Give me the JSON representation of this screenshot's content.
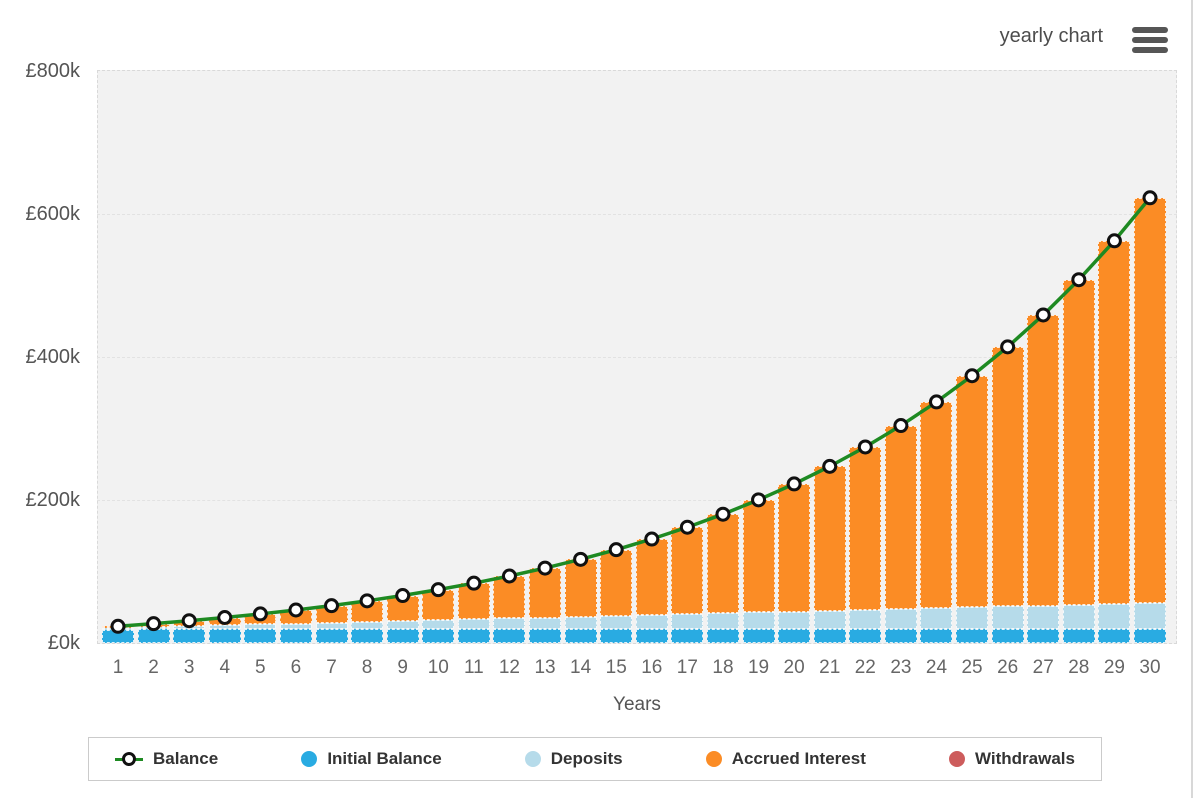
{
  "header": {
    "view_mode_label": "yearly chart",
    "menu_icon": "hamburger-icon"
  },
  "chart_data": {
    "type": "bar",
    "subtype": "stacked-bars-with-line-overlay",
    "title": "",
    "xlabel": "Years",
    "ylabel": "",
    "currency": "GBP",
    "ylim": [
      0,
      800000
    ],
    "grid": "horizontal",
    "legend_position": "bottom",
    "x": [
      1,
      2,
      3,
      4,
      5,
      6,
      7,
      8,
      9,
      10,
      11,
      12,
      13,
      14,
      15,
      16,
      17,
      18,
      19,
      20,
      21,
      22,
      23,
      24,
      25,
      26,
      27,
      28,
      29,
      30
    ],
    "y_ticks": [
      {
        "value": 0,
        "label": "£0k"
      },
      {
        "value": 200000,
        "label": "£200k"
      },
      {
        "value": 400000,
        "label": "£400k"
      },
      {
        "value": 600000,
        "label": "£600k"
      },
      {
        "value": 800000,
        "label": "£800k"
      }
    ],
    "series": [
      {
        "name": "Balance",
        "type": "line",
        "color": "#1e8a22",
        "marker": "white-circle-black-ring",
        "values": [
          23351,
          27052,
          31142,
          35659,
          40650,
          46162,
          52253,
          58980,
          66413,
          74623,
          83693,
          93713,
          104781,
          117009,
          130517,
          145439,
          161924,
          180135,
          200252,
          222477,
          247027,
          274149,
          304110,
          337208,
          373772,
          414164,
          458786,
          508079,
          562534,
          622691
        ]
      },
      {
        "name": "Initial Balance",
        "type": "bar-stack",
        "color": "#29abe2",
        "values": [
          20000,
          20000,
          20000,
          20000,
          20000,
          20000,
          20000,
          20000,
          20000,
          20000,
          20000,
          20000,
          20000,
          20000,
          20000,
          20000,
          20000,
          20000,
          20000,
          20000,
          20000,
          20000,
          20000,
          20000,
          20000,
          20000,
          20000,
          20000,
          20000,
          20000
        ]
      },
      {
        "name": "Deposits",
        "type": "bar-stack",
        "color": "#b6dbea",
        "values": [
          1200,
          2400,
          3600,
          4800,
          6000,
          7200,
          8400,
          9600,
          10800,
          12000,
          13200,
          14400,
          15600,
          16800,
          18000,
          19200,
          20400,
          21600,
          22800,
          24000,
          25200,
          26400,
          27600,
          28800,
          30000,
          31200,
          32400,
          33600,
          34800,
          36000
        ]
      },
      {
        "name": "Accrued Interest",
        "type": "bar-stack",
        "color": "#fb8c25",
        "values": [
          2151,
          4652,
          7542,
          10859,
          14650,
          18962,
          23853,
          29380,
          35613,
          42623,
          50493,
          59313,
          69181,
          80209,
          92517,
          106239,
          121524,
          138535,
          157452,
          178477,
          201827,
          227749,
          256510,
          288408,
          323772,
          362964,
          406386,
          454479,
          507734,
          566691
        ]
      },
      {
        "name": "Withdrawals",
        "type": "bar-stack",
        "color": "#cd5c5c",
        "values": [
          0,
          0,
          0,
          0,
          0,
          0,
          0,
          0,
          0,
          0,
          0,
          0,
          0,
          0,
          0,
          0,
          0,
          0,
          0,
          0,
          0,
          0,
          0,
          0,
          0,
          0,
          0,
          0,
          0,
          0
        ]
      }
    ]
  },
  "legend": {
    "items": [
      {
        "label": "Balance",
        "color": "#1e8a22",
        "swatch": "line-marker"
      },
      {
        "label": "Initial Balance",
        "color": "#29abe2",
        "swatch": "circle"
      },
      {
        "label": "Deposits",
        "color": "#b6dbea",
        "swatch": "circle"
      },
      {
        "label": "Accrued Interest",
        "color": "#fb8c25",
        "swatch": "circle"
      },
      {
        "label": "Withdrawals",
        "color": "#cd5c5c",
        "swatch": "circle"
      }
    ]
  }
}
